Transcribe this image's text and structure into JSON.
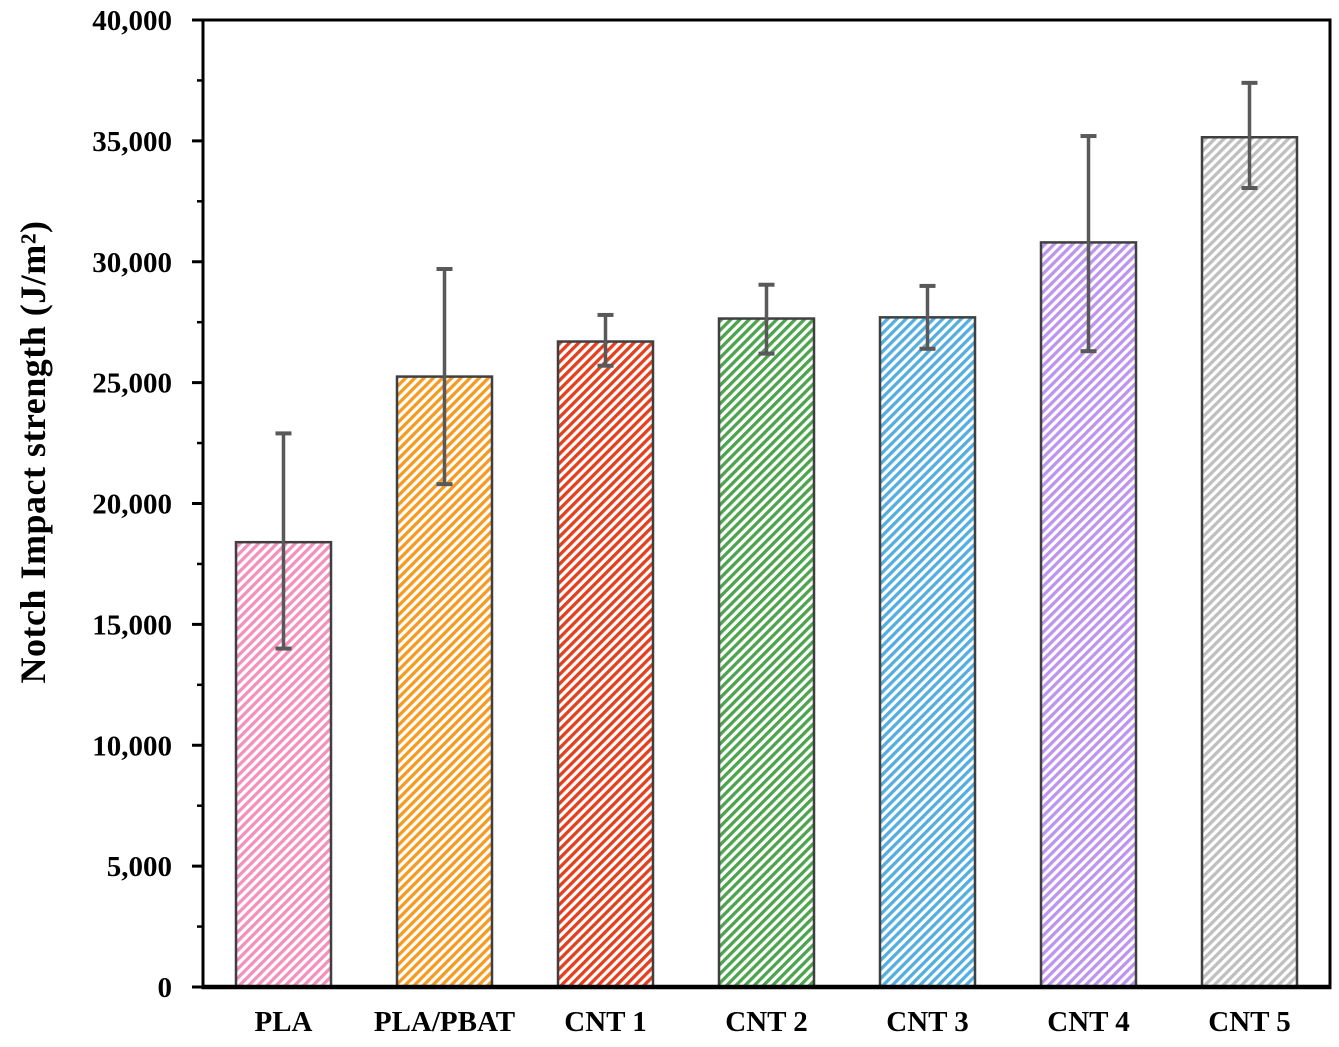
{
  "chart_data": {
    "type": "bar",
    "title": "",
    "xlabel": "",
    "ylabel": "Notch Impact strength (J/m²)",
    "categories": [
      "PLA",
      "PLA/PBAT",
      "CNT 1",
      "CNT 2",
      "CNT 3",
      "CNT 4",
      "CNT 5"
    ],
    "values": [
      18400,
      25250,
      26700,
      27650,
      27700,
      30800,
      35150
    ],
    "error_bars": {
      "upper": [
        22900,
        29700,
        27800,
        29050,
        29000,
        35200,
        37400
      ],
      "lower": [
        14000,
        20800,
        25700,
        26200,
        26400,
        26300,
        33050
      ]
    },
    "bar_colors": [
      "#F391BE",
      "#F59B22",
      "#E2401F",
      "#4EA34E",
      "#55AEDD",
      "#BD95EC",
      "#BFBFBF"
    ],
    "bar_fill_style": "diagonal-hatch",
    "bar_outline_color": "#3F3F3F",
    "error_bar_color": "#595959",
    "axis_color": "#000000",
    "ylim": [
      0,
      40000
    ],
    "ytick_interval": 5000,
    "yminor_interval": 2500,
    "ytick_labels": [
      "0",
      "5,000",
      "10,000",
      "15,000",
      "20,000",
      "25,000",
      "30,000",
      "35,000",
      "40,000"
    ],
    "grid": false,
    "legend": null
  }
}
